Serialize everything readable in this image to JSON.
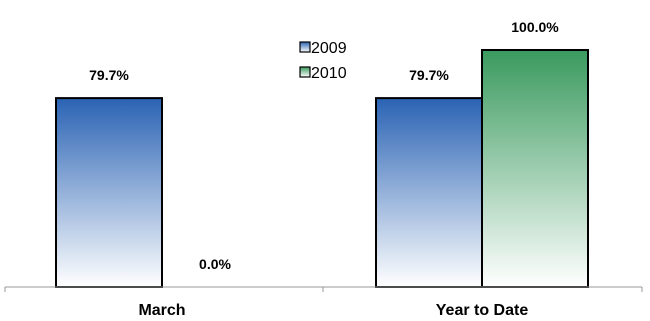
{
  "chart_data": {
    "type": "bar",
    "categories": [
      "March",
      "Year to Date"
    ],
    "series": [
      {
        "name": "2009",
        "values": [
          79.7,
          79.7
        ],
        "labels": [
          "79.7%",
          "79.7%"
        ],
        "color": "#2a63b4"
      },
      {
        "name": "2010",
        "values": [
          0.0,
          100.0
        ],
        "labels": [
          "0.0%",
          "100.0%"
        ],
        "color": "#3a9a5e"
      }
    ],
    "ylim": [
      0,
      100
    ],
    "grid": false,
    "legend_position": "top-center"
  }
}
